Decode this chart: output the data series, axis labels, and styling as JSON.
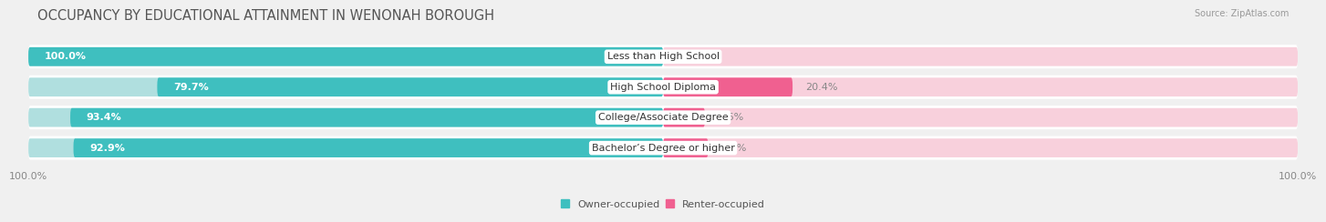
{
  "title": "OCCUPANCY BY EDUCATIONAL ATTAINMENT IN WENONAH BOROUGH",
  "source": "Source: ZipAtlas.com",
  "categories": [
    "Less than High School",
    "High School Diploma",
    "College/Associate Degree",
    "Bachelor’s Degree or higher"
  ],
  "owner_values": [
    100.0,
    79.7,
    93.4,
    92.9
  ],
  "renter_values": [
    0.0,
    20.4,
    6.6,
    7.1
  ],
  "owner_color": "#3FBFBF",
  "renter_color": "#F06090",
  "owner_color_light": "#B0DFDF",
  "renter_color_light": "#F8D0DC",
  "row_bg_color": "#EAEAEA",
  "bar_height": 0.62,
  "background_color": "#f0f0f0",
  "title_fontsize": 10.5,
  "label_fontsize": 8,
  "value_fontsize": 8,
  "axis_label_fontsize": 8,
  "legend_fontsize": 8,
  "x_left_label": "100.0%",
  "x_right_label": "100.0%",
  "xlim": [
    -100,
    100
  ]
}
